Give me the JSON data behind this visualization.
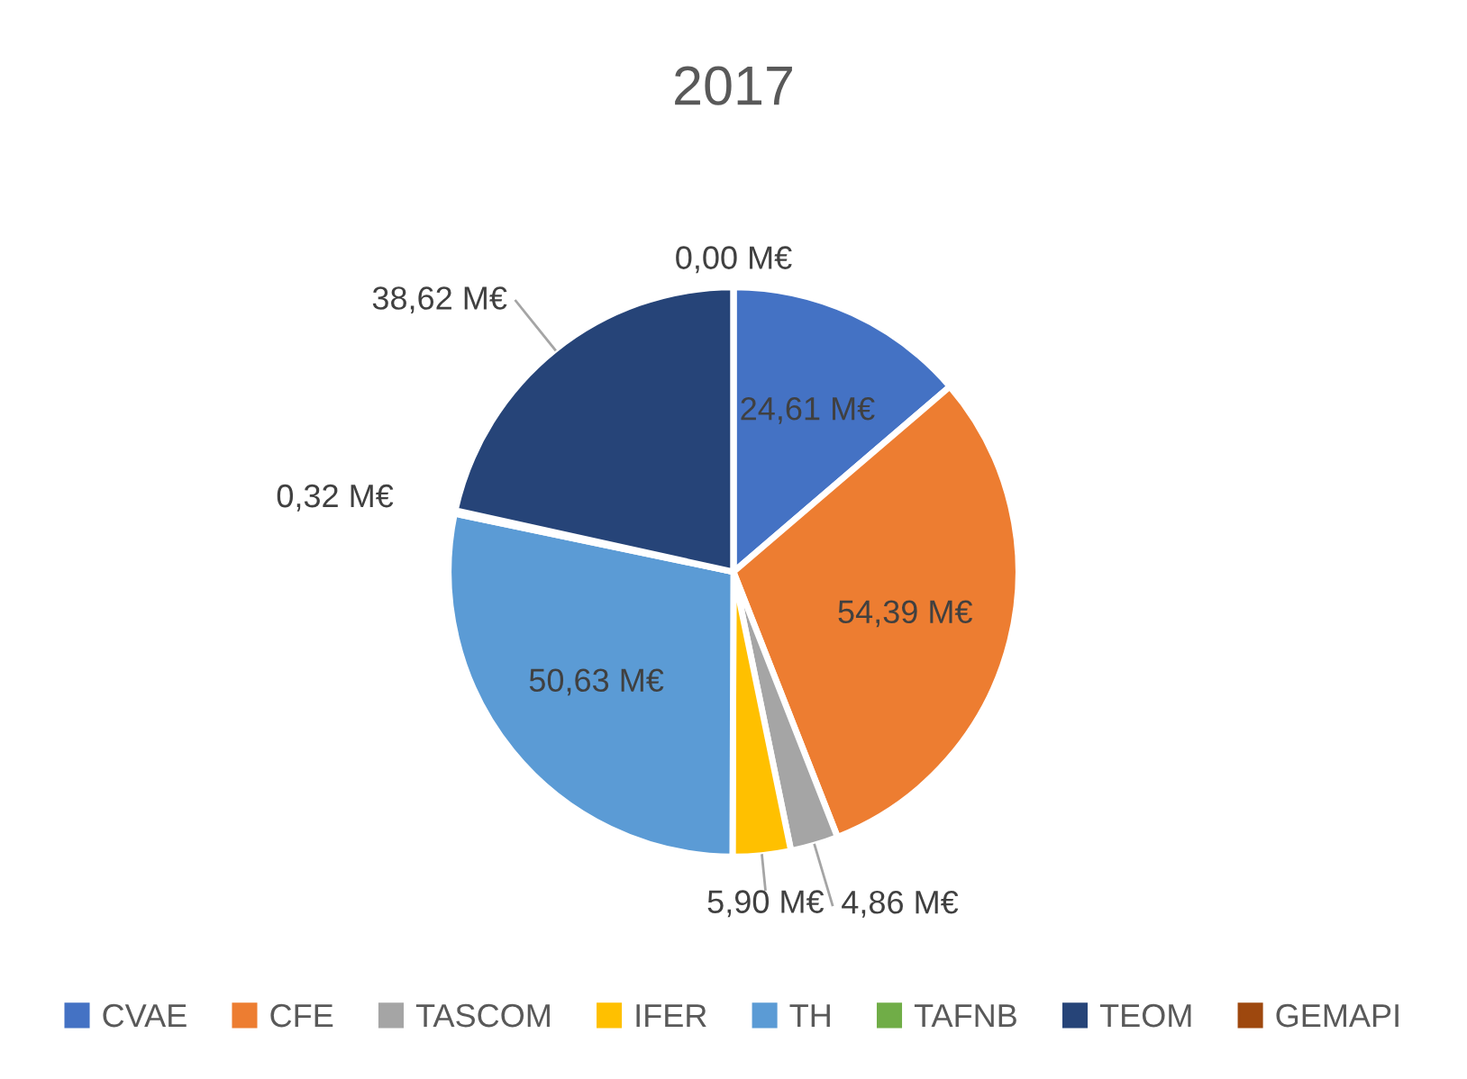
{
  "chart_data": {
    "type": "pie",
    "title": "2017",
    "categories": [
      "CVAE",
      "CFE",
      "TASCOM",
      "IFER",
      "TH",
      "TAFNB",
      "TEOM",
      "GEMAPI"
    ],
    "values": [
      24.61,
      54.39,
      4.86,
      5.9,
      50.63,
      0.32,
      38.62,
      0.0
    ],
    "value_labels": [
      "24,61 M€",
      "54,39 M€",
      "4,86 M€",
      "5,90 M€",
      "50,63 M€",
      "0,32 M€",
      "38,62 M€",
      "0,00 M€"
    ],
    "colors": [
      "#4472c4",
      "#ed7d31",
      "#a5a5a5",
      "#ffc000",
      "#5b9bd5",
      "#70ad47",
      "#264478",
      "#9e480e"
    ],
    "legend": "bottom"
  }
}
